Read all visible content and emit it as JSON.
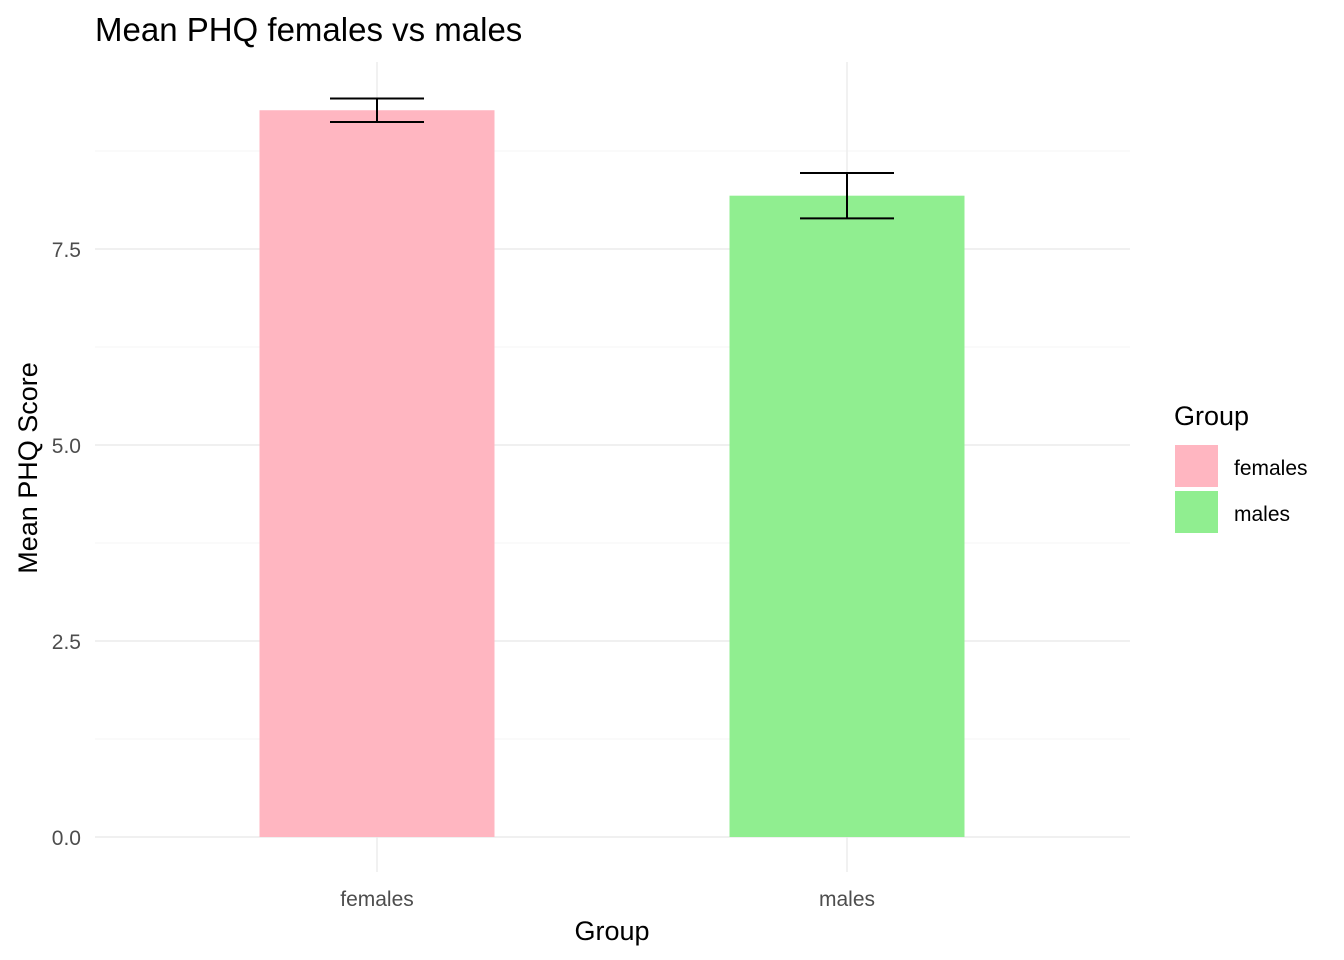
{
  "chart_data": {
    "type": "bar",
    "title": "Mean PHQ females vs males",
    "xlabel": "Group",
    "ylabel": "Mean PHQ Score",
    "categories": [
      "females",
      "males"
    ],
    "values": [
      9.27,
      8.18
    ],
    "error_low": [
      9.12,
      7.89
    ],
    "error_high": [
      9.42,
      8.47
    ],
    "colors": [
      "#FFB6C1",
      "#90EE90"
    ],
    "ylim": [
      0,
      10.0
    ],
    "yticks": [
      0.0,
      2.5,
      5.0,
      7.5
    ],
    "ytick_labels": [
      "0.0",
      "2.5",
      "5.0",
      "7.5"
    ],
    "grid": true,
    "legend": {
      "title": "Group",
      "placement": "right",
      "entries": [
        "females",
        "males"
      ]
    }
  }
}
